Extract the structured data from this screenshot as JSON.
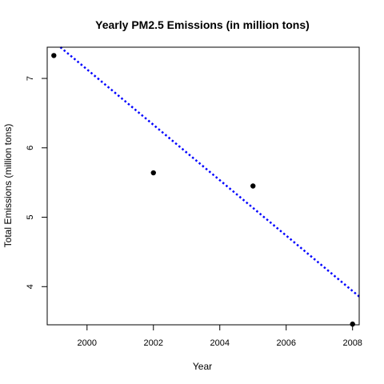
{
  "chart_data": {
    "type": "scatter",
    "title": "Yearly PM2.5 Emissions (in million tons)",
    "xlabel": "Year",
    "ylabel": "Total Emissions (million tons)",
    "xlim": [
      1998.8,
      2008.2
    ],
    "ylim": [
      3.45,
      7.45
    ],
    "x_ticks": [
      2000,
      2002,
      2004,
      2006,
      2008
    ],
    "x_tick_labels": [
      "2000",
      "2002",
      "2004",
      "2006",
      "2008"
    ],
    "y_ticks": [
      4,
      5,
      6,
      7
    ],
    "y_tick_labels": [
      "4",
      "5",
      "6",
      "7"
    ],
    "grid": false,
    "series": [
      {
        "x": [
          1999,
          2002,
          2005,
          2008
        ],
        "y": [
          7.33,
          5.64,
          5.45,
          3.46
        ],
        "color": "#000000",
        "marker": "filled-circle"
      }
    ],
    "trend_line": {
      "type": "linear",
      "slope": -0.3991,
      "intercept": 805.33,
      "color": "#0000ff",
      "style": "dotted"
    }
  }
}
